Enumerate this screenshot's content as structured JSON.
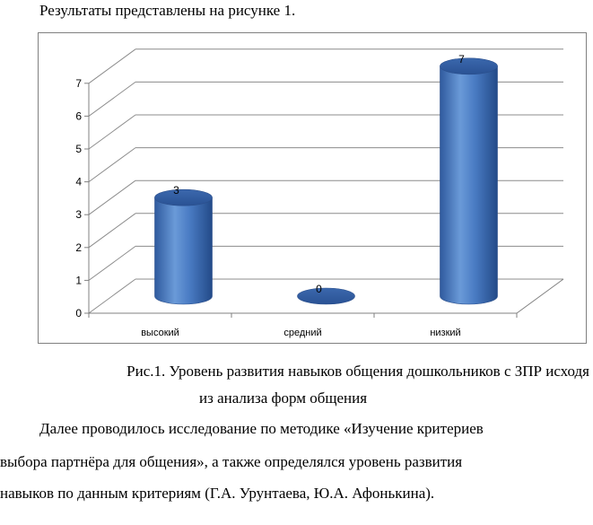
{
  "intro_text": "Результаты представлены на рисунке 1.",
  "chart_data": {
    "type": "bar",
    "categories": [
      "высокий",
      "средний",
      "низкий"
    ],
    "values": [
      3,
      0,
      7
    ],
    "data_labels": [
      "3",
      "0",
      "7"
    ],
    "title": "",
    "xlabel": "",
    "ylabel": "",
    "ylim": [
      0,
      7
    ],
    "y_ticks": [
      "0",
      "1",
      "2",
      "3",
      "4",
      "5",
      "6",
      "7"
    ],
    "grid": true,
    "legend": "none",
    "bar_color": "#4a7cc4",
    "bar_edge_color": "#2b4f8c"
  },
  "caption": {
    "line1": "Рис.1. Уровень развития навыков общения дошкольников с ЗПР исходя",
    "line2": "из анализа форм общения"
  },
  "paragraph": {
    "line1": "Далее проводилось исследование по методике «Изучение критериев",
    "line2": "выбора партнёра для общения», а также определялся уровень развития",
    "line3": "навыков по данным критериям (Г.А. Урунтаева, Ю.А. Афонькина)."
  }
}
